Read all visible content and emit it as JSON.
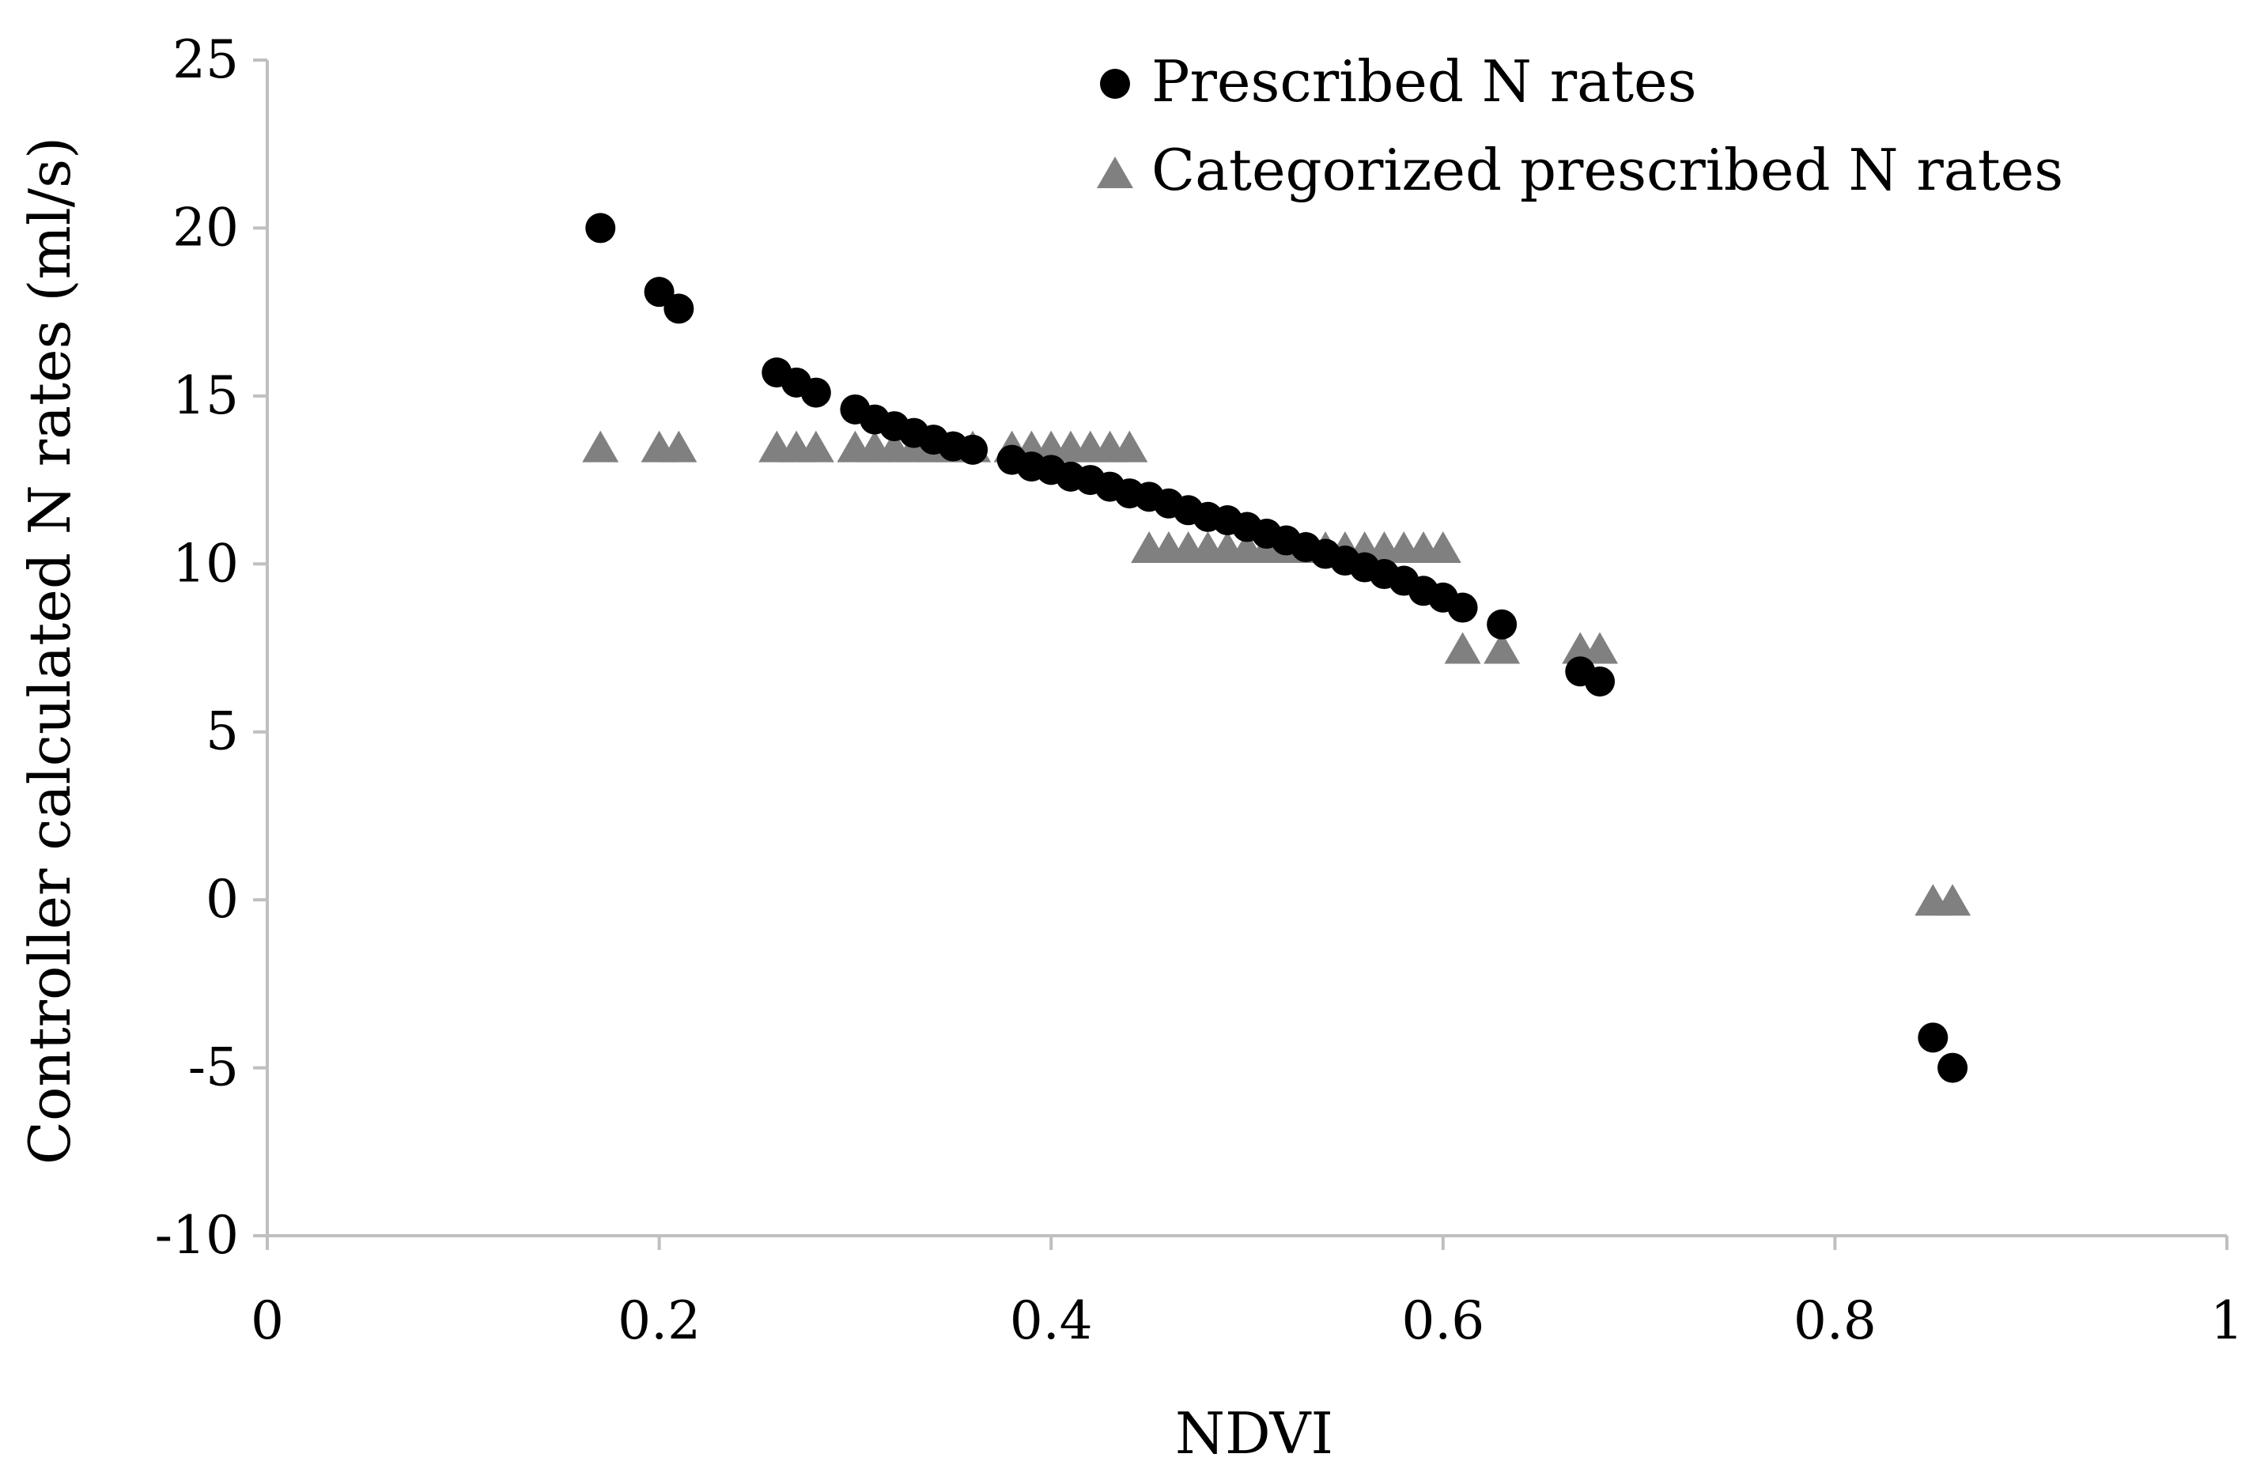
{
  "chart_data": {
    "type": "scatter",
    "title": "",
    "xlabel": "NDVI",
    "ylabel": "Controller calculated N rates (ml/s)",
    "xlim": [
      0,
      1
    ],
    "ylim": [
      -10,
      25
    ],
    "x_ticks": [
      0,
      0.2,
      0.4,
      0.6,
      0.8,
      1
    ],
    "x_tick_labels": [
      "0",
      "0.2",
      "0.4",
      "0.6",
      "0.8",
      "1"
    ],
    "y_ticks": [
      -10,
      -5,
      0,
      5,
      10,
      15,
      20,
      25
    ],
    "y_tick_labels": [
      "-10",
      "-5",
      "0",
      "5",
      "10",
      "15",
      "20",
      "25"
    ],
    "grid": false,
    "legend_position": "top-right",
    "series": [
      {
        "name": "Prescribed N rates",
        "marker": "circle",
        "color": "#000000",
        "x": [
          0.17,
          0.2,
          0.21,
          0.26,
          0.27,
          0.28,
          0.3,
          0.31,
          0.32,
          0.33,
          0.34,
          0.35,
          0.36,
          0.38,
          0.39,
          0.4,
          0.41,
          0.42,
          0.43,
          0.44,
          0.45,
          0.46,
          0.47,
          0.48,
          0.49,
          0.5,
          0.51,
          0.52,
          0.53,
          0.54,
          0.55,
          0.56,
          0.57,
          0.58,
          0.59,
          0.6,
          0.61,
          0.63,
          0.67,
          0.68,
          0.85,
          0.86
        ],
        "y": [
          20.0,
          18.1,
          17.6,
          15.7,
          15.4,
          15.1,
          14.6,
          14.3,
          14.1,
          13.9,
          13.7,
          13.5,
          13.4,
          13.1,
          12.9,
          12.8,
          12.6,
          12.5,
          12.3,
          12.1,
          12.0,
          11.8,
          11.6,
          11.4,
          11.3,
          11.1,
          10.9,
          10.7,
          10.5,
          10.3,
          10.1,
          9.9,
          9.7,
          9.5,
          9.2,
          9.0,
          8.7,
          8.2,
          6.8,
          6.5,
          -4.1,
          -5.0
        ]
      },
      {
        "name": "Categorized prescribed N rates",
        "marker": "triangle",
        "color": "#808080",
        "x": [
          0.17,
          0.2,
          0.21,
          0.26,
          0.27,
          0.28,
          0.3,
          0.31,
          0.32,
          0.33,
          0.34,
          0.35,
          0.36,
          0.38,
          0.39,
          0.4,
          0.41,
          0.42,
          0.43,
          0.44,
          0.45,
          0.46,
          0.47,
          0.48,
          0.49,
          0.5,
          0.51,
          0.52,
          0.53,
          0.54,
          0.55,
          0.56,
          0.57,
          0.58,
          0.59,
          0.6,
          0.61,
          0.63,
          0.67,
          0.68,
          0.85,
          0.86
        ],
        "y": [
          13.5,
          13.5,
          13.5,
          13.5,
          13.5,
          13.5,
          13.5,
          13.5,
          13.5,
          13.5,
          13.5,
          13.5,
          13.5,
          13.5,
          13.5,
          13.5,
          13.5,
          13.5,
          13.5,
          13.5,
          10.5,
          10.5,
          10.5,
          10.5,
          10.5,
          10.5,
          10.5,
          10.5,
          10.5,
          10.5,
          10.5,
          10.5,
          10.5,
          10.5,
          10.5,
          10.5,
          7.5,
          7.5,
          7.5,
          7.5,
          0,
          0
        ]
      }
    ]
  },
  "colors": {
    "axis": "#bfbfbf",
    "circle": "#000000",
    "triangle": "#808080"
  }
}
